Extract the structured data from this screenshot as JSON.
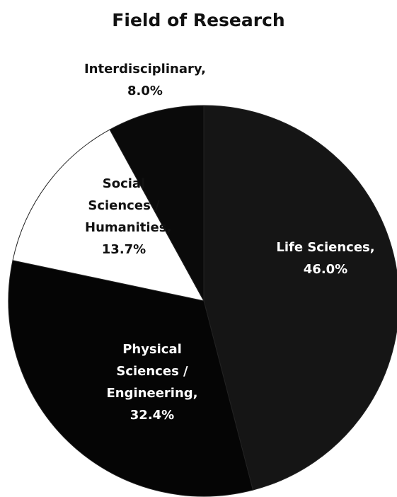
{
  "chart_data": {
    "type": "pie",
    "title": "Field of Research",
    "categories": [
      "Life Sciences,",
      "Physical Sciences / Engineering,",
      "Social Sciences / Humanities,",
      "Interdisciplinary,"
    ],
    "values": [
      46.0,
      32.4,
      13.7,
      8.0
    ],
    "value_labels": [
      "46.0%",
      "32.4%",
      "13.7%",
      "8.0%"
    ],
    "colors": [
      "#151515",
      "#050505",
      "#ffffff",
      "#0a0a0a"
    ],
    "label_colors": [
      "#ffffff",
      "#ffffff",
      "#111111",
      "#111111"
    ]
  }
}
